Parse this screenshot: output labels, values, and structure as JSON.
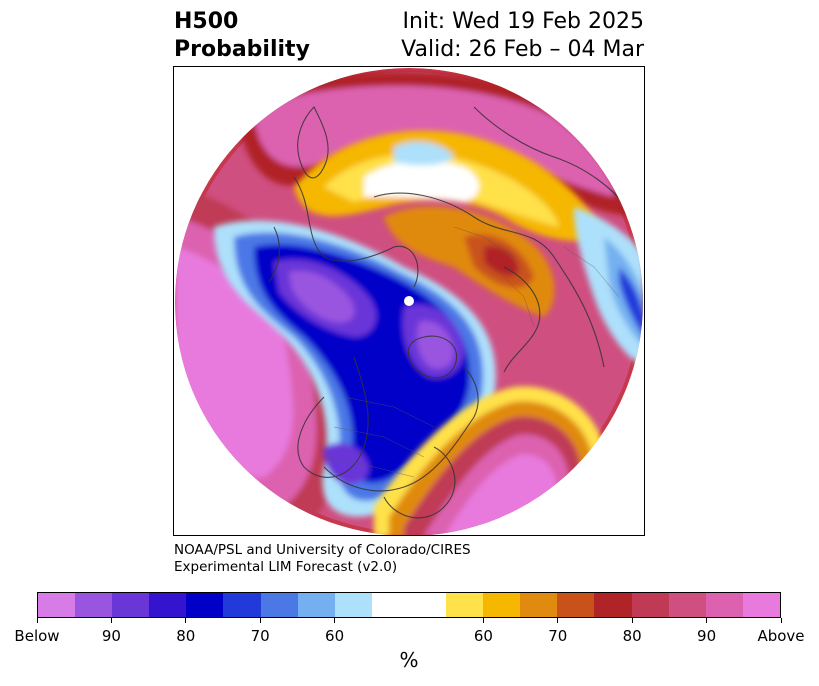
{
  "header": {
    "title_line1": "H500",
    "title_line2": "Probability",
    "init": "Init: Wed 19 Feb 2025",
    "valid": "Valid: 26 Feb – 04 Mar"
  },
  "credit": {
    "line1": "NOAA/PSL and University of Colorado/CIRES",
    "line2": "Experimental LIM Forecast (v2.0)"
  },
  "colorbar": {
    "colors": [
      "#d77be6",
      "#9a55e0",
      "#6a36d8",
      "#3514d0",
      "#0000c8",
      "#233adb",
      "#4c78e6",
      "#74b0f0",
      "#ade0fb",
      "#ffffff",
      "#ffe14a",
      "#f5b700",
      "#e08a10",
      "#c9521a",
      "#b02428",
      "#c03a55",
      "#cf4f80",
      "#dc62b0",
      "#e87ade"
    ],
    "labels": [
      "Below",
      "90",
      "80",
      "70",
      "60",
      "60",
      "70",
      "80",
      "90",
      "Above"
    ],
    "unit": "%"
  },
  "map": {
    "projection": "north-polar-stereographic",
    "pole_marker": "white-dot",
    "fields": [
      {
        "name": "pacific-above",
        "category": "Above"
      },
      {
        "name": "north-atlantic-above",
        "category": "Above"
      },
      {
        "name": "eastern-us-above",
        "category": "Above"
      },
      {
        "name": "arctic-below",
        "category": "Below"
      },
      {
        "name": "western-canada-below",
        "category": "Below"
      },
      {
        "name": "central-us-below",
        "category": "Below"
      },
      {
        "name": "eurasia-yellow",
        "category": "60"
      }
    ]
  }
}
